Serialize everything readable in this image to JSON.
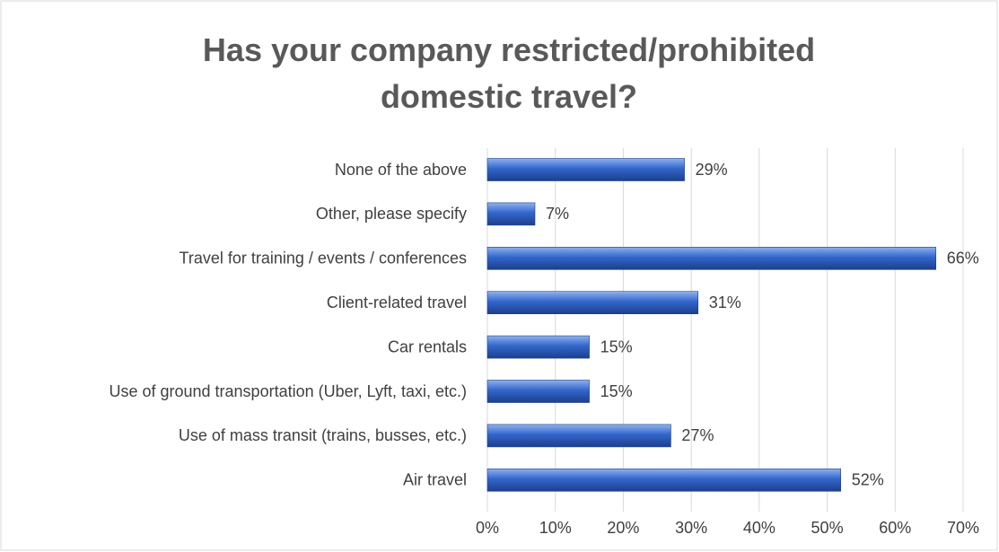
{
  "chart_data": {
    "type": "hbar",
    "title": "Has your company restricted/prohibited domestic travel?",
    "categories": [
      "None of the above",
      "Other, please specify",
      "Travel for training / events / conferences",
      "Client-related travel",
      "Car rentals",
      "Use of ground transportation (Uber, Lyft, taxi, etc.)",
      "Use of mass transit (trains, busses, etc.)",
      "Air travel"
    ],
    "values": [
      29,
      7,
      66,
      31,
      15,
      15,
      27,
      52
    ],
    "value_labels": [
      "29%",
      "7%",
      "66%",
      "31%",
      "15%",
      "15%",
      "27%",
      "52%"
    ],
    "color": "#3366cc",
    "xlim": [
      0,
      70
    ],
    "xticks": [
      {
        "value": 0,
        "label": "0%"
      },
      {
        "value": 10,
        "label": "10%"
      },
      {
        "value": 20,
        "label": "20%"
      },
      {
        "value": 30,
        "label": "30%"
      },
      {
        "value": 40,
        "label": "40%"
      },
      {
        "value": 50,
        "label": "50%"
      },
      {
        "value": 60,
        "label": "60%"
      },
      {
        "value": 70,
        "label": "70%"
      }
    ],
    "grid": true
  }
}
